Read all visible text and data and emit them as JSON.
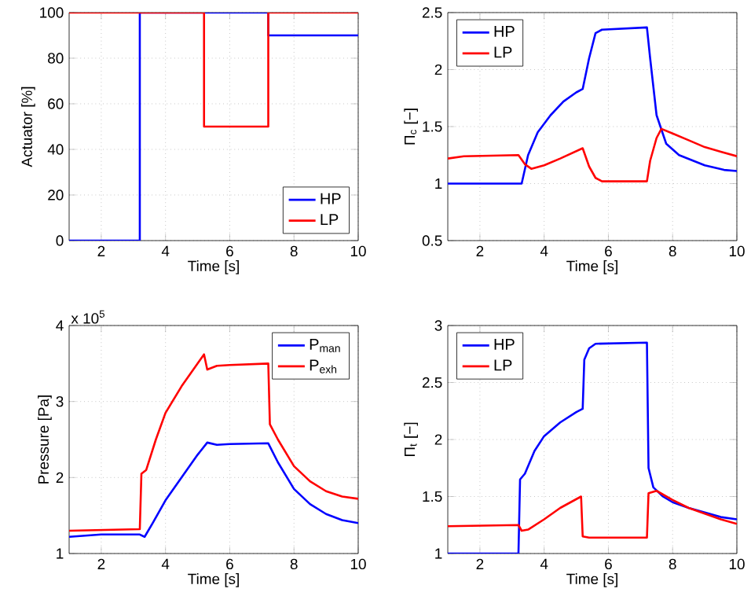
{
  "chart_data": [
    {
      "type": "line",
      "xlabel": "Time [s]",
      "ylabel": "Actuator [%]",
      "xlim": [
        1,
        10
      ],
      "ylim": [
        0,
        100
      ],
      "xticks": [
        2,
        4,
        6,
        8,
        10
      ],
      "yticks": [
        0,
        20,
        40,
        60,
        80,
        100
      ],
      "grid": true,
      "legend": "bottom right",
      "series": [
        {
          "name": "HP",
          "color": "#0000ff",
          "x": [
            1,
            3.2,
            3.2,
            7.2,
            7.2,
            10
          ],
          "values": [
            0,
            0,
            100,
            100,
            90,
            90
          ]
        },
        {
          "name": "LP",
          "color": "#ff0000",
          "x": [
            1,
            5.2,
            5.2,
            7.2,
            7.2,
            10
          ],
          "values": [
            100,
            100,
            50,
            50,
            100,
            100
          ]
        }
      ]
    },
    {
      "type": "line",
      "xlabel": "Time [s]",
      "ylabel": "Π$_{c}$ [−]",
      "xlim": [
        1,
        10
      ],
      "ylim": [
        0.5,
        2.5
      ],
      "xticks": [
        2,
        4,
        6,
        8,
        10
      ],
      "yticks": [
        0.5,
        1,
        1.5,
        2,
        2.5
      ],
      "grid": true,
      "legend": "top left",
      "series": [
        {
          "name": "HP",
          "color": "#0000ff",
          "x": [
            1,
            3.3,
            3.5,
            3.8,
            4.2,
            4.6,
            5.0,
            5.2,
            5.4,
            5.6,
            5.8,
            7.2,
            7.3,
            7.5,
            7.8,
            8.2,
            9,
            9.6,
            10
          ],
          "values": [
            1.0,
            1.0,
            1.25,
            1.45,
            1.6,
            1.72,
            1.8,
            1.83,
            2.1,
            2.32,
            2.35,
            2.37,
            2.1,
            1.6,
            1.35,
            1.25,
            1.16,
            1.12,
            1.11
          ]
        },
        {
          "name": "LP",
          "color": "#ff0000",
          "x": [
            1,
            1.5,
            3.2,
            3.4,
            3.6,
            4,
            4.5,
            5.2,
            5.4,
            5.6,
            5.8,
            7.2,
            7.3,
            7.5,
            7.65,
            8,
            8.5,
            9,
            9.5,
            10
          ],
          "values": [
            1.22,
            1.24,
            1.25,
            1.17,
            1.13,
            1.16,
            1.22,
            1.31,
            1.15,
            1.05,
            1.02,
            1.02,
            1.2,
            1.4,
            1.48,
            1.44,
            1.38,
            1.32,
            1.28,
            1.24
          ]
        }
      ]
    },
    {
      "type": "line",
      "xlabel": "Time [s]",
      "ylabel": "Pressure [Pa]",
      "xlim": [
        1,
        10
      ],
      "ylim": [
        1,
        4
      ],
      "xticks": [
        2,
        4,
        6,
        8,
        10
      ],
      "yticks": [
        1,
        2,
        3,
        4
      ],
      "grid": true,
      "legend": "top right",
      "annotations": [
        "x 10$^{5}$"
      ],
      "series": [
        {
          "name": "P$_{man}$",
          "color": "#0000ff",
          "x": [
            1,
            2,
            3.2,
            3.35,
            3.6,
            4,
            4.5,
            5,
            5.3,
            5.6,
            6,
            7.2,
            7.5,
            8,
            8.5,
            9,
            9.5,
            10
          ],
          "values": [
            1.22,
            1.25,
            1.25,
            1.22,
            1.4,
            1.7,
            2.0,
            2.3,
            2.46,
            2.43,
            2.44,
            2.45,
            2.2,
            1.85,
            1.65,
            1.52,
            1.44,
            1.4
          ]
        },
        {
          "name": "P$_{exh}$",
          "color": "#ff0000",
          "x": [
            1,
            3.2,
            3.25,
            3.4,
            3.7,
            4,
            4.5,
            5,
            5.2,
            5.3,
            5.6,
            6,
            7.2,
            7.25,
            7.5,
            8,
            8.5,
            9,
            9.5,
            10
          ],
          "values": [
            1.3,
            1.32,
            2.05,
            2.1,
            2.5,
            2.85,
            3.2,
            3.5,
            3.62,
            3.42,
            3.47,
            3.48,
            3.5,
            2.7,
            2.5,
            2.15,
            1.95,
            1.82,
            1.75,
            1.72
          ]
        }
      ]
    },
    {
      "type": "line",
      "xlabel": "Time [s]",
      "ylabel": "Π$_{t}$ [−]",
      "xlim": [
        1,
        10
      ],
      "ylim": [
        1,
        3
      ],
      "xticks": [
        2,
        4,
        6,
        8,
        10
      ],
      "yticks": [
        1,
        1.5,
        2,
        2.5,
        3
      ],
      "grid": true,
      "legend": "top left",
      "series": [
        {
          "name": "HP",
          "color": "#0000ff",
          "x": [
            1,
            3.2,
            3.25,
            3.4,
            3.7,
            4,
            4.5,
            5,
            5.2,
            5.25,
            5.4,
            5.6,
            7.2,
            7.25,
            7.4,
            7.7,
            8,
            8.5,
            9,
            9.5,
            10
          ],
          "values": [
            1.0,
            1.0,
            1.65,
            1.7,
            1.9,
            2.03,
            2.15,
            2.24,
            2.27,
            2.7,
            2.8,
            2.84,
            2.85,
            1.75,
            1.58,
            1.5,
            1.45,
            1.4,
            1.36,
            1.32,
            1.3
          ]
        },
        {
          "name": "LP",
          "color": "#ff0000",
          "x": [
            1,
            3.2,
            3.3,
            3.5,
            4,
            4.5,
            5.15,
            5.2,
            5.4,
            7.2,
            7.25,
            7.5,
            8,
            8.5,
            9,
            9.5,
            10
          ],
          "values": [
            1.24,
            1.25,
            1.2,
            1.21,
            1.3,
            1.4,
            1.5,
            1.15,
            1.14,
            1.14,
            1.53,
            1.55,
            1.47,
            1.4,
            1.35,
            1.3,
            1.26
          ]
        }
      ]
    }
  ]
}
